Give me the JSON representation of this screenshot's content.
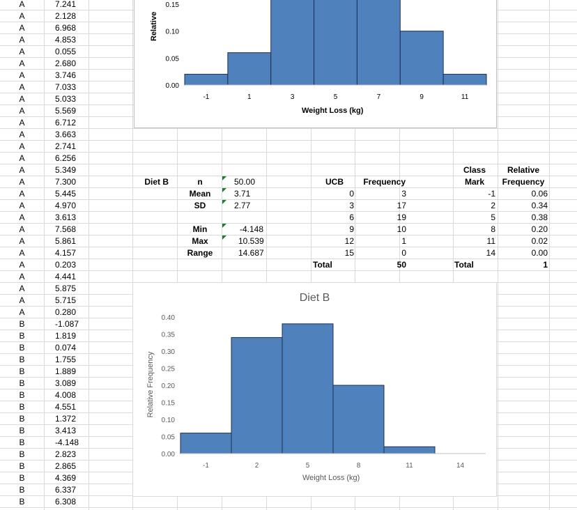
{
  "sheet": {
    "rows": [
      {
        "diet": "A",
        "value": "7.241"
      },
      {
        "diet": "A",
        "value": "2.128"
      },
      {
        "diet": "A",
        "value": "6.968"
      },
      {
        "diet": "A",
        "value": "4.853"
      },
      {
        "diet": "A",
        "value": "0.055"
      },
      {
        "diet": "A",
        "value": "2.680"
      },
      {
        "diet": "A",
        "value": "3.746"
      },
      {
        "diet": "A",
        "value": "7.033"
      },
      {
        "diet": "A",
        "value": "5.033"
      },
      {
        "diet": "A",
        "value": "5.569"
      },
      {
        "diet": "A",
        "value": "6.712"
      },
      {
        "diet": "A",
        "value": "3.663"
      },
      {
        "diet": "A",
        "value": "2.741"
      },
      {
        "diet": "A",
        "value": "6.256"
      },
      {
        "diet": "A",
        "value": "5.349"
      },
      {
        "diet": "A",
        "value": "7.300"
      },
      {
        "diet": "A",
        "value": "5.445"
      },
      {
        "diet": "A",
        "value": "4.970"
      },
      {
        "diet": "A",
        "value": "3.613"
      },
      {
        "diet": "A",
        "value": "7.568"
      },
      {
        "diet": "A",
        "value": "5.861"
      },
      {
        "diet": "A",
        "value": "4.157"
      },
      {
        "diet": "A",
        "value": "0.203"
      },
      {
        "diet": "A",
        "value": "4.441"
      },
      {
        "diet": "A",
        "value": "5.875"
      },
      {
        "diet": "A",
        "value": "5.715"
      },
      {
        "diet": "A",
        "value": "0.280"
      },
      {
        "diet": "B",
        "value": "-1.087"
      },
      {
        "diet": "B",
        "value": "1.819"
      },
      {
        "diet": "B",
        "value": "0.074"
      },
      {
        "diet": "B",
        "value": "1.755"
      },
      {
        "diet": "B",
        "value": "1.889"
      },
      {
        "diet": "B",
        "value": "3.089"
      },
      {
        "diet": "B",
        "value": "4.008"
      },
      {
        "diet": "B",
        "value": "4.551"
      },
      {
        "diet": "B",
        "value": "1.372"
      },
      {
        "diet": "B",
        "value": "3.413"
      },
      {
        "diet": "B",
        "value": "-4.148"
      },
      {
        "diet": "B",
        "value": "2.823"
      },
      {
        "diet": "B",
        "value": "2.865"
      },
      {
        "diet": "B",
        "value": "4.369"
      },
      {
        "diet": "B",
        "value": "6.337"
      },
      {
        "diet": "B",
        "value": "6.308"
      }
    ]
  },
  "stats": {
    "label": "Diet B",
    "n_label": "n",
    "n_value": "50.00",
    "mean_label": "Mean",
    "mean_value": "3.71",
    "sd_label": "SD",
    "sd_value": "2.77",
    "min_label": "Min",
    "min_value": "-4.148",
    "max_label": "Max",
    "max_value": "10.539",
    "range_label": "Range",
    "range_value": "14.687"
  },
  "freq_table": {
    "ucb_header": "UCB",
    "freq_header": "Frequency",
    "rows": [
      {
        "ucb": "0",
        "freq": "3"
      },
      {
        "ucb": "3",
        "freq": "17"
      },
      {
        "ucb": "6",
        "freq": "19"
      },
      {
        "ucb": "9",
        "freq": "10"
      },
      {
        "ucb": "12",
        "freq": "1"
      },
      {
        "ucb": "15",
        "freq": "0"
      }
    ],
    "total_label": "Total",
    "total_value": "50"
  },
  "rel_table": {
    "class_header_1": "Class",
    "class_header_2": "Mark",
    "rel_header_1": "Relative",
    "rel_header_2": "Frequency",
    "rows": [
      {
        "mark": "-1",
        "rel": "0.06"
      },
      {
        "mark": "2",
        "rel": "0.34"
      },
      {
        "mark": "5",
        "rel": "0.38"
      },
      {
        "mark": "8",
        "rel": "0.20"
      },
      {
        "mark": "11",
        "rel": "0.02"
      },
      {
        "mark": "14",
        "rel": "0.00"
      }
    ],
    "total_label": "Total",
    "total_value": "1"
  },
  "chart_data": [
    {
      "type": "bar",
      "title": "",
      "xlabel": "Weight Loss (kg)",
      "ylabel": "Relative",
      "categories": [
        "-1",
        "1",
        "3",
        "5",
        "7",
        "9",
        "11"
      ],
      "values": [
        0.02,
        0.06,
        0.16,
        0.16,
        0.16,
        0.1,
        0.02
      ],
      "yticks": [
        "0.00",
        "0.05",
        "0.10",
        "0.15"
      ],
      "ylim": [
        0,
        0.15
      ],
      "grid": false,
      "bar_color": "#4f81bd"
    },
    {
      "type": "bar",
      "title": "Diet B",
      "xlabel": "Weight Loss (kg)",
      "ylabel": "Relative Frequency",
      "categories": [
        "-1",
        "2",
        "5",
        "8",
        "11",
        "14"
      ],
      "values": [
        0.06,
        0.34,
        0.38,
        0.2,
        0.02,
        0.0
      ],
      "yticks": [
        "0.00",
        "0.05",
        "0.10",
        "0.15",
        "0.20",
        "0.25",
        "0.30",
        "0.35",
        "0.40"
      ],
      "ylim": [
        0,
        0.4
      ],
      "grid": false,
      "bar_color": "#4f81bd"
    }
  ]
}
